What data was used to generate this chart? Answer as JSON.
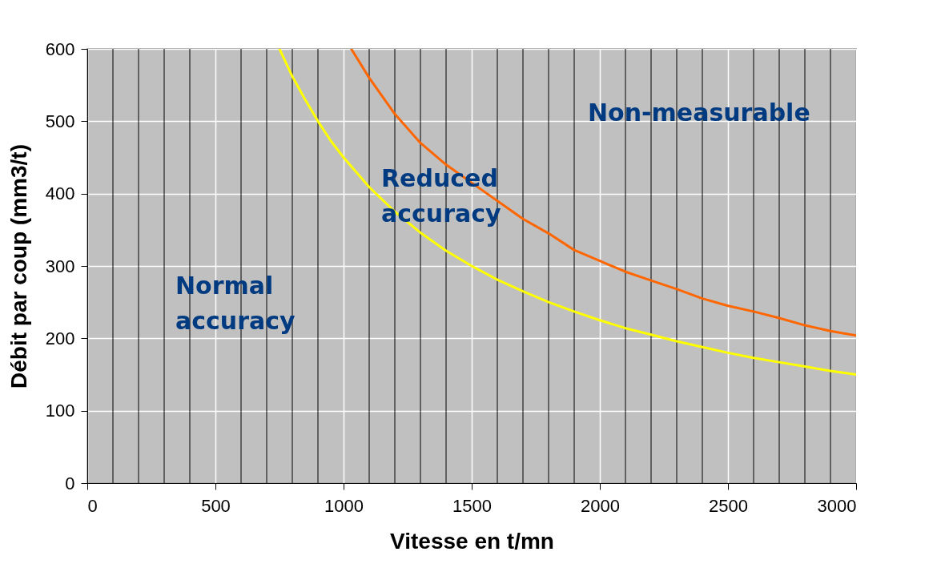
{
  "chart_data": {
    "type": "line",
    "xlabel": "Vitesse en t/mn",
    "ylabel": "Débit par coup (mm3/t)",
    "series": [
      {
        "color": "#ffff00",
        "x": [
          750,
          800,
          850,
          900,
          950,
          1000,
          1100,
          1200,
          1300,
          1400,
          1500,
          1600,
          1700,
          1800,
          1900,
          2000,
          2100,
          2200,
          2300,
          2400,
          2500,
          2600,
          2700,
          2800,
          2900,
          3000
        ],
        "values": [
          600,
          562,
          530,
          500,
          473,
          450,
          409,
          375,
          346,
          321,
          300,
          281,
          265,
          250,
          237,
          225,
          214,
          205,
          196,
          188,
          180,
          173,
          167,
          161,
          155,
          150
        ]
      },
      {
        "color": "#ff6600",
        "x": [
          1030,
          1100,
          1200,
          1300,
          1400,
          1500,
          1600,
          1700,
          1800,
          1900,
          2000,
          2100,
          2200,
          2300,
          2400,
          2500,
          2600,
          2700,
          2800,
          2900,
          3000
        ],
        "values": [
          600,
          560,
          510,
          470,
          440,
          415,
          390,
          365,
          345,
          322,
          307,
          292,
          280,
          268,
          255,
          245,
          237,
          228,
          218,
          210,
          204
        ]
      }
    ],
    "xlim": [
      0,
      3000
    ],
    "xticks": [
      0,
      {
        "value": 100,
        "label": null
      },
      {
        "value": 200,
        "label": null
      },
      {
        "value": 300,
        "label": null
      },
      {
        "value": 400,
        "label": null
      },
      500,
      {
        "value": 600,
        "label": null
      },
      {
        "value": 700,
        "label": null
      },
      {
        "value": 800,
        "label": null
      },
      {
        "value": 900,
        "label": null
      },
      1000,
      {
        "value": 1100,
        "label": null
      },
      {
        "value": 1200,
        "label": null
      },
      {
        "value": 1300,
        "label": null
      },
      {
        "value": 1400,
        "label": null
      },
      1500,
      {
        "value": 1600,
        "label": null
      },
      {
        "value": 1700,
        "label": null
      },
      {
        "value": 1800,
        "label": null
      },
      {
        "value": 1900,
        "label": null
      },
      2000,
      {
        "value": 2100,
        "label": null
      },
      {
        "value": 2200,
        "label": null
      },
      {
        "value": 2300,
        "label": null
      },
      {
        "value": 2400,
        "label": null
      },
      2500,
      {
        "value": 2600,
        "label": null
      },
      {
        "value": 2700,
        "label": null
      },
      {
        "value": 2800,
        "label": null
      },
      {
        "value": 2900,
        "label": null
      },
      3000
    ],
    "ylim": [
      0,
      600
    ],
    "yticks": [
      0,
      100,
      200,
      300,
      400,
      500,
      600
    ],
    "grid": true,
    "legend": false,
    "marker": "none",
    "line_style": "solid",
    "annotations": [
      "Normal\naccuracy",
      "Reduced\naccuracy",
      "Non-measurable"
    ]
  }
}
